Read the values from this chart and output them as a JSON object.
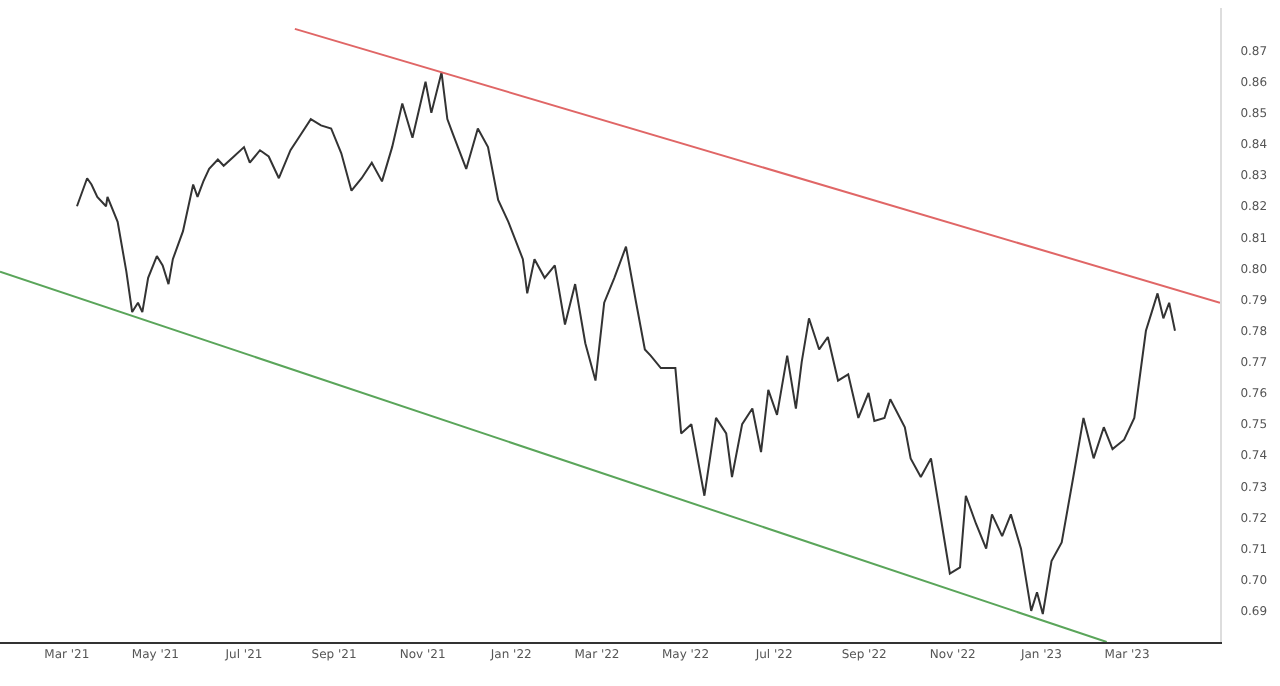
{
  "chart_data": {
    "type": "line",
    "xlim": [
      "2021-01-14",
      "2023-05-04"
    ],
    "ylim": [
      0.68,
      0.8837
    ],
    "xticks": [
      {
        "value": "2021-03-01",
        "label": "Mar '21"
      },
      {
        "value": "2021-05-01",
        "label": "May '21"
      },
      {
        "value": "2021-07-01",
        "label": "Jul '21"
      },
      {
        "value": "2021-09-01",
        "label": "Sep '21"
      },
      {
        "value": "2021-11-01",
        "label": "Nov '21"
      },
      {
        "value": "2022-01-01",
        "label": "Jan '22"
      },
      {
        "value": "2022-03-01",
        "label": "Mar '22"
      },
      {
        "value": "2022-05-01",
        "label": "May '22"
      },
      {
        "value": "2022-07-01",
        "label": "Jul '22"
      },
      {
        "value": "2022-09-01",
        "label": "Sep '22"
      },
      {
        "value": "2022-11-01",
        "label": "Nov '22"
      },
      {
        "value": "2023-01-01",
        "label": "Jan '23"
      },
      {
        "value": "2023-03-01",
        "label": "Mar '23"
      }
    ],
    "yticks": [
      0.69,
      {
        "value": 0.7,
        "label": "0.70"
      },
      0.71,
      0.72,
      0.73,
      0.74,
      0.75,
      0.76,
      0.77,
      0.78,
      0.79,
      {
        "value": 0.8,
        "label": "0.80"
      },
      0.81,
      0.82,
      0.83,
      0.84,
      0.85,
      0.86,
      0.87
    ],
    "marker": "none",
    "line_style": "solid",
    "series": [
      {
        "color": "#333333",
        "x": [
          "2021-03-08",
          "2021-03-15",
          "2021-03-18",
          "2021-03-22",
          "2021-03-28",
          "2021-03-29",
          "2021-04-05",
          "2021-04-11",
          "2021-04-15",
          "2021-04-19",
          "2021-04-22",
          "2021-04-26",
          "2021-05-02",
          "2021-05-06",
          "2021-05-10",
          "2021-05-13",
          "2021-05-20",
          "2021-05-27",
          "2021-05-30",
          "2021-06-03",
          "2021-06-07",
          "2021-06-13",
          "2021-06-17",
          "2021-06-24",
          "2021-07-01",
          "2021-07-05",
          "2021-07-12",
          "2021-07-18",
          "2021-07-25",
          "2021-08-02",
          "2021-08-09",
          "2021-08-16",
          "2021-08-23",
          "2021-08-30",
          "2021-09-06",
          "2021-09-13",
          "2021-09-20",
          "2021-09-27",
          "2021-10-04",
          "2021-10-11",
          "2021-10-18",
          "2021-10-25",
          "2021-11-03",
          "2021-11-07",
          "2021-11-14",
          "2021-11-18",
          "2021-11-22",
          "2021-12-01",
          "2021-12-09",
          "2021-12-16",
          "2021-12-23",
          "2021-12-30",
          "2022-01-09",
          "2022-01-12",
          "2022-01-17",
          "2022-01-24",
          "2022-01-31",
          "2022-02-07",
          "2022-02-14",
          "2022-02-21",
          "2022-02-28",
          "2022-03-06",
          "2022-03-13",
          "2022-03-21",
          "2022-03-28",
          "2022-04-03",
          "2022-04-07",
          "2022-04-14",
          "2022-04-24",
          "2022-04-28",
          "2022-05-05",
          "2022-05-14",
          "2022-05-22",
          "2022-05-29",
          "2022-06-02",
          "2022-06-09",
          "2022-06-16",
          "2022-06-22",
          "2022-06-27",
          "2022-07-03",
          "2022-07-10",
          "2022-07-16",
          "2022-07-20",
          "2022-07-25",
          "2022-08-01",
          "2022-08-07",
          "2022-08-14",
          "2022-08-21",
          "2022-08-28",
          "2022-09-04",
          "2022-09-08",
          "2022-09-15",
          "2022-09-19",
          "2022-09-29",
          "2022-10-03",
          "2022-10-10",
          "2022-10-17",
          "2022-10-23",
          "2022-10-30",
          "2022-11-06",
          "2022-11-10",
          "2022-11-17",
          "2022-11-24",
          "2022-11-28",
          "2022-12-05",
          "2022-12-11",
          "2022-12-18",
          "2022-12-25",
          "2022-12-29",
          "2023-01-02",
          "2023-01-08",
          "2023-01-15",
          "2023-01-23",
          "2023-01-30",
          "2023-02-06",
          "2023-02-13",
          "2023-02-19",
          "2023-02-27",
          "2023-03-06",
          "2023-03-14",
          "2023-03-18",
          "2023-03-22",
          "2023-03-26",
          "2023-03-30",
          "2023-04-03"
        ],
        "values": [
          0.82,
          0.829,
          0.827,
          0.823,
          0.82,
          0.823,
          0.815,
          0.799,
          0.786,
          0.789,
          0.786,
          0.797,
          0.804,
          0.801,
          0.795,
          0.803,
          0.812,
          0.827,
          0.823,
          0.828,
          0.832,
          0.835,
          0.833,
          0.836,
          0.839,
          0.834,
          0.838,
          0.836,
          0.829,
          0.838,
          0.843,
          0.848,
          0.846,
          0.845,
          0.837,
          0.825,
          0.829,
          0.834,
          0.828,
          0.839,
          0.853,
          0.842,
          0.86,
          0.85,
          0.863,
          0.848,
          0.843,
          0.832,
          0.845,
          0.839,
          0.822,
          0.815,
          0.803,
          0.792,
          0.803,
          0.797,
          0.801,
          0.782,
          0.795,
          0.776,
          0.764,
          0.789,
          0.797,
          0.807,
          0.789,
          0.774,
          0.772,
          0.768,
          0.768,
          0.747,
          0.75,
          0.727,
          0.752,
          0.747,
          0.733,
          0.75,
          0.755,
          0.741,
          0.761,
          0.753,
          0.772,
          0.755,
          0.77,
          0.784,
          0.774,
          0.778,
          0.764,
          0.766,
          0.752,
          0.76,
          0.751,
          0.752,
          0.758,
          0.749,
          0.739,
          0.733,
          0.739,
          0.722,
          0.702,
          0.704,
          0.727,
          0.718,
          0.71,
          0.721,
          0.714,
          0.721,
          0.71,
          0.69,
          0.696,
          0.689,
          0.706,
          0.712,
          0.733,
          0.752,
          0.739,
          0.749,
          0.742,
          0.745,
          0.752,
          0.78,
          0.786,
          0.792,
          0.784,
          0.789,
          0.78
        ]
      },
      {
        "color": "#e06666",
        "x": [
          "2021-08-05",
          "2023-05-04"
        ],
        "values": [
          0.877,
          0.789
        ]
      },
      {
        "color": "#5aa55a",
        "x": [
          "2021-01-14",
          "2023-02-15"
        ],
        "values": [
          0.799,
          0.68
        ]
      }
    ]
  }
}
